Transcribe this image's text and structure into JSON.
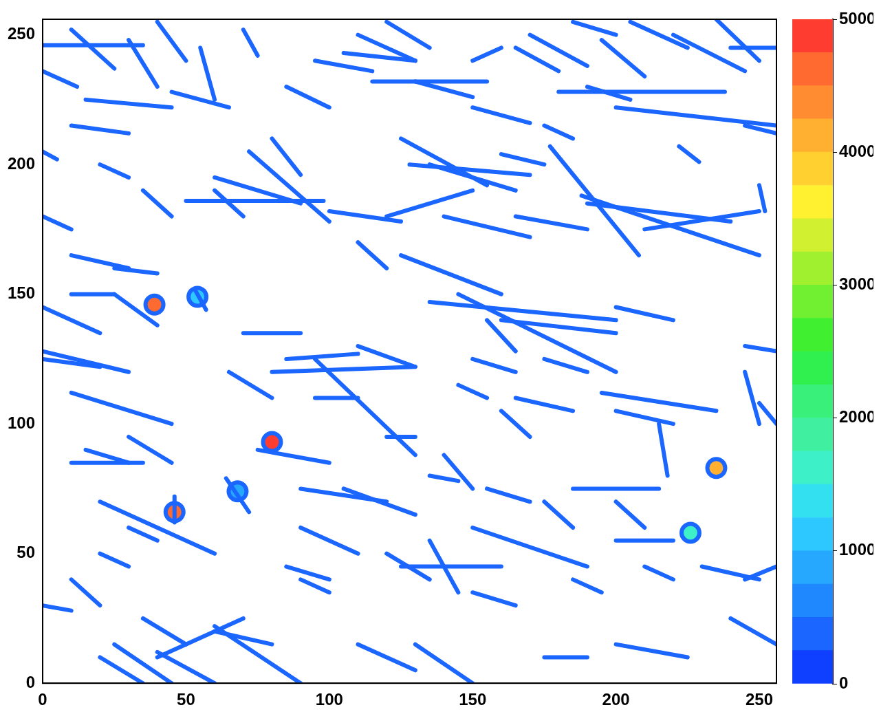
{
  "chart_data": {
    "type": "heatmap",
    "xlim": [
      0,
      256
    ],
    "ylim": [
      0,
      256
    ],
    "xticks": [
      0,
      50,
      100,
      150,
      200,
      250
    ],
    "yticks": [
      0,
      50,
      100,
      150,
      200,
      250
    ],
    "grid": false,
    "track_value": 300,
    "tracks": [
      [
        0,
        246,
        35,
        246
      ],
      [
        10,
        252,
        25,
        237
      ],
      [
        30,
        248,
        40,
        230
      ],
      [
        0,
        236,
        12,
        230
      ],
      [
        15,
        225,
        45,
        222
      ],
      [
        10,
        215,
        30,
        212
      ],
      [
        40,
        255,
        50,
        240
      ],
      [
        45,
        228,
        65,
        222
      ],
      [
        55,
        245,
        60,
        225
      ],
      [
        70,
        252,
        75,
        242
      ],
      [
        60,
        195,
        90,
        185
      ],
      [
        50,
        186,
        98,
        186
      ],
      [
        72,
        205,
        100,
        178
      ],
      [
        80,
        210,
        90,
        196
      ],
      [
        95,
        240,
        115,
        236
      ],
      [
        85,
        230,
        100,
        222
      ],
      [
        105,
        243,
        130,
        240
      ],
      [
        110,
        250,
        130,
        240
      ],
      [
        120,
        255,
        135,
        245
      ],
      [
        115,
        232,
        155,
        232
      ],
      [
        130,
        232,
        150,
        226
      ],
      [
        150,
        240,
        160,
        245
      ],
      [
        165,
        245,
        180,
        236
      ],
      [
        170,
        250,
        190,
        238
      ],
      [
        185,
        255,
        200,
        250
      ],
      [
        195,
        248,
        210,
        234
      ],
      [
        205,
        255,
        225,
        245
      ],
      [
        220,
        250,
        245,
        236
      ],
      [
        235,
        256,
        250,
        240
      ],
      [
        240,
        245,
        256,
        245
      ],
      [
        180,
        228,
        238,
        228
      ],
      [
        200,
        222,
        256,
        215
      ],
      [
        190,
        230,
        205,
        225
      ],
      [
        125,
        210,
        155,
        192
      ],
      [
        128,
        200,
        170,
        196
      ],
      [
        135,
        200,
        165,
        190
      ],
      [
        150,
        222,
        170,
        216
      ],
      [
        160,
        204,
        175,
        200
      ],
      [
        175,
        215,
        185,
        210
      ],
      [
        177,
        207,
        208,
        165
      ],
      [
        190,
        185,
        240,
        178
      ],
      [
        188,
        188,
        250,
        165
      ],
      [
        210,
        175,
        250,
        182
      ],
      [
        222,
        207,
        229,
        201
      ],
      [
        245,
        215,
        256,
        212
      ],
      [
        250,
        192,
        252,
        182
      ],
      [
        120,
        180,
        150,
        190
      ],
      [
        140,
        180,
        170,
        172
      ],
      [
        165,
        180,
        190,
        175
      ],
      [
        100,
        182,
        125,
        178
      ],
      [
        110,
        170,
        120,
        160
      ],
      [
        145,
        150,
        200,
        120
      ],
      [
        125,
        165,
        160,
        150
      ],
      [
        135,
        147,
        200,
        140
      ],
      [
        160,
        140,
        200,
        135
      ],
      [
        155,
        140,
        165,
        128
      ],
      [
        70,
        135,
        90,
        135
      ],
      [
        80,
        120,
        130,
        122
      ],
      [
        85,
        125,
        110,
        127
      ],
      [
        110,
        130,
        130,
        122
      ],
      [
        65,
        120,
        80,
        110
      ],
      [
        0,
        145,
        20,
        135
      ],
      [
        0,
        125,
        20,
        122
      ],
      [
        0,
        128,
        30,
        120
      ],
      [
        10,
        112,
        45,
        100
      ],
      [
        15,
        90,
        30,
        85
      ],
      [
        10,
        85,
        35,
        85
      ],
      [
        95,
        125,
        130,
        88
      ],
      [
        95,
        110,
        110,
        110
      ],
      [
        35,
        190,
        45,
        180
      ],
      [
        20,
        200,
        30,
        195
      ],
      [
        0,
        180,
        10,
        175
      ],
      [
        0,
        205,
        5,
        202
      ],
      [
        10,
        165,
        30,
        160
      ],
      [
        25,
        160,
        40,
        158
      ],
      [
        10,
        150,
        25,
        150
      ],
      [
        25,
        150,
        40,
        138
      ],
      [
        20,
        70,
        60,
        50
      ],
      [
        30,
        60,
        40,
        55
      ],
      [
        20,
        50,
        30,
        45
      ],
      [
        10,
        40,
        20,
        30
      ],
      [
        0,
        30,
        10,
        28
      ],
      [
        25,
        15,
        45,
        0
      ],
      [
        40,
        12,
        60,
        0
      ],
      [
        60,
        20,
        80,
        15
      ],
      [
        60,
        22,
        90,
        0
      ],
      [
        35,
        25,
        50,
        15
      ],
      [
        40,
        10,
        70,
        25
      ],
      [
        20,
        10,
        35,
        0
      ],
      [
        110,
        15,
        130,
        5
      ],
      [
        130,
        15,
        150,
        0
      ],
      [
        125,
        45,
        160,
        45
      ],
      [
        120,
        50,
        135,
        40
      ],
      [
        135,
        55,
        145,
        35
      ],
      [
        85,
        45,
        100,
        40
      ],
      [
        90,
        60,
        110,
        50
      ],
      [
        90,
        40,
        100,
        35
      ],
      [
        150,
        35,
        165,
        30
      ],
      [
        150,
        60,
        190,
        45
      ],
      [
        155,
        75,
        170,
        70
      ],
      [
        175,
        70,
        185,
        60
      ],
      [
        185,
        40,
        195,
        35
      ],
      [
        175,
        10,
        190,
        10
      ],
      [
        200,
        15,
        225,
        10
      ],
      [
        240,
        25,
        256,
        15
      ],
      [
        245,
        40,
        256,
        45
      ],
      [
        230,
        45,
        250,
        40
      ],
      [
        200,
        55,
        220,
        55
      ],
      [
        210,
        45,
        220,
        40
      ],
      [
        185,
        75,
        215,
        75
      ],
      [
        200,
        70,
        210,
        60
      ],
      [
        195,
        112,
        235,
        105
      ],
      [
        200,
        105,
        220,
        100
      ],
      [
        215,
        100,
        218,
        80
      ],
      [
        250,
        108,
        256,
        100
      ],
      [
        245,
        130,
        256,
        128
      ],
      [
        245,
        120,
        250,
        100
      ],
      [
        160,
        105,
        170,
        95
      ],
      [
        165,
        110,
        185,
        105
      ],
      [
        175,
        125,
        190,
        120
      ],
      [
        200,
        145,
        220,
        140
      ],
      [
        150,
        125,
        165,
        120
      ],
      [
        145,
        115,
        155,
        110
      ],
      [
        105,
        75,
        130,
        65
      ],
      [
        90,
        75,
        120,
        70
      ],
      [
        75,
        90,
        100,
        85
      ],
      [
        120,
        95,
        130,
        95
      ],
      [
        140,
        88,
        150,
        75
      ],
      [
        135,
        80,
        145,
        78
      ],
      [
        30,
        95,
        45,
        85
      ],
      [
        60,
        190,
        70,
        180
      ],
      [
        64,
        79,
        72,
        66
      ],
      [
        53,
        152,
        57,
        144
      ],
      [
        46,
        72,
        46,
        62
      ]
    ],
    "blobs": [
      {
        "x": 39,
        "y": 146,
        "value": 4500
      },
      {
        "x": 80,
        "y": 93,
        "value": 4800
      },
      {
        "x": 46,
        "y": 66,
        "value": 4700
      },
      {
        "x": 235,
        "y": 83,
        "value": 4000
      },
      {
        "x": 226,
        "y": 58,
        "value": 1500
      },
      {
        "x": 68,
        "y": 74,
        "value": 800
      },
      {
        "x": 54,
        "y": 149,
        "value": 1000
      }
    ],
    "colorbar": {
      "range": [
        0,
        5000
      ],
      "ticks": [
        0,
        1000,
        2000,
        3000,
        4000,
        5000
      ]
    }
  }
}
